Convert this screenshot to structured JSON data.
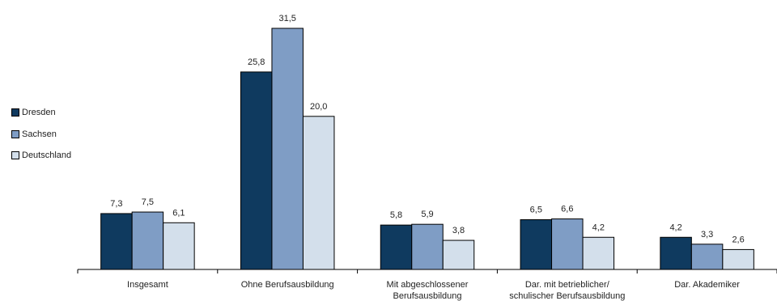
{
  "chart_data": {
    "type": "bar",
    "categories": [
      [
        "Insgesamt"
      ],
      [
        "Ohne Berufsausbildung"
      ],
      [
        "Mit abgeschlossener",
        "Berufsausbildung"
      ],
      [
        "Dar. mit betrieblicher/",
        "schulischer Berufsausbildung"
      ],
      [
        "Dar. Akademiker"
      ]
    ],
    "series": [
      {
        "name": "Dresden",
        "color": "#0f3a5f",
        "values": [
          7.3,
          25.8,
          5.8,
          6.5,
          4.2
        ],
        "labels": [
          "7,3",
          "25,8",
          "5,8",
          "6,5",
          "4,2"
        ]
      },
      {
        "name": "Sachsen",
        "color": "#7f9dc5",
        "values": [
          7.5,
          31.5,
          5.9,
          6.6,
          3.3
        ],
        "labels": [
          "7,5",
          "31,5",
          "5,9",
          "6,6",
          "3,3"
        ]
      },
      {
        "name": "Deutschland",
        "color": "#d3dfeb",
        "values": [
          6.1,
          20.0,
          3.8,
          4.2,
          2.6
        ],
        "labels": [
          "6,1",
          "20,0",
          "3,8",
          "4,2",
          "2,6"
        ]
      }
    ],
    "ylim": [
      0,
      31.5
    ],
    "grid": false,
    "legend_position": "left"
  }
}
